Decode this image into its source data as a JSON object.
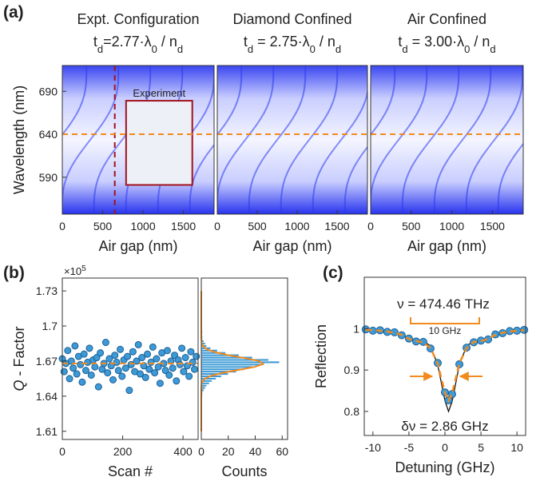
{
  "chart_data": [
    {
      "type": "heatmap",
      "panel_label": "(a)",
      "title": "Expt. Configuration",
      "subtitle_parts": [
        "t",
        "d",
        "=2.77·λ",
        "0",
        " / n",
        "d"
      ],
      "xlabel": "Air gap (nm)",
      "ylabel": "Wavelength (nm)",
      "xlim": [
        0,
        1880
      ],
      "ylim": [
        547,
        720
      ],
      "xticks": [
        0,
        500,
        1000,
        1500
      ],
      "yticks": [
        590,
        640,
        690
      ],
      "color": "#2a38ee",
      "hline": 640,
      "hline_color": "#f28a1c",
      "vline": 650,
      "vline_color": "#a0141e",
      "inset_label": "Experiment",
      "inset_x": [
        790,
        1610
      ],
      "inset_y": [
        581,
        679
      ]
    },
    {
      "type": "heatmap",
      "title": "Diamond Confined",
      "subtitle_parts": [
        "t",
        "d",
        " = 2.75·λ",
        "0",
        " / n",
        "d"
      ],
      "xlabel": "Air gap (nm)",
      "xlim": [
        0,
        1880
      ],
      "ylim": [
        547,
        720
      ],
      "xticks": [
        0,
        500,
        1000,
        1500
      ],
      "color": "#2a38ee",
      "hline": 640,
      "hline_color": "#f28a1c"
    },
    {
      "type": "heatmap",
      "title": "Air Confined",
      "subtitle_parts": [
        "t",
        "d",
        " = 3.00·λ",
        "0",
        " / n",
        "d"
      ],
      "xlabel": "Air gap (nm)",
      "xlim": [
        0,
        1880
      ],
      "ylim": [
        547,
        720
      ],
      "xticks": [
        0,
        500,
        1000,
        1500
      ],
      "color": "#2a38ee",
      "hline": 640,
      "hline_color": "#f28a1c"
    },
    {
      "type": "scatter",
      "panel_label": "(b)",
      "xlabel": "Scan #",
      "ylabel_parts": [
        "Q",
        " - Factor"
      ],
      "multiplier_parts": [
        "×10",
        "5"
      ],
      "x": [
        0,
        6,
        12,
        18,
        24,
        30,
        36,
        42,
        48,
        54,
        60,
        66,
        72,
        78,
        84,
        90,
        96,
        102,
        108,
        114,
        120,
        126,
        132,
        138,
        144,
        150,
        156,
        162,
        168,
        174,
        180,
        186,
        192,
        198,
        204,
        210,
        216,
        222,
        228,
        234,
        240,
        246,
        252,
        258,
        264,
        270,
        276,
        282,
        288,
        294,
        300,
        306,
        312,
        318,
        324,
        330,
        336,
        342,
        348,
        354,
        360,
        366,
        372,
        378,
        384,
        390,
        396,
        402,
        408,
        414,
        420,
        426,
        432,
        438,
        444
      ],
      "values": [
        1.672,
        1.661,
        1.668,
        1.679,
        1.655,
        1.67,
        1.664,
        1.683,
        1.659,
        1.674,
        1.667,
        1.652,
        1.676,
        1.662,
        1.669,
        1.681,
        1.658,
        1.671,
        1.665,
        1.673,
        1.648,
        1.677,
        1.663,
        1.668,
        1.686,
        1.66,
        1.672,
        1.666,
        1.654,
        1.675,
        1.669,
        1.662,
        1.68,
        1.657,
        1.671,
        1.664,
        1.674,
        1.645,
        1.667,
        1.678,
        1.661,
        1.67,
        1.684,
        1.659,
        1.673,
        1.666,
        1.656,
        1.676,
        1.663,
        1.669,
        1.682,
        1.66,
        1.672,
        1.665,
        1.651,
        1.677,
        1.668,
        1.662,
        1.679,
        1.658,
        1.67,
        1.664,
        1.675,
        1.653,
        1.671,
        1.667,
        1.681,
        1.661,
        1.673,
        1.666,
        1.657,
        1.678,
        1.669,
        1.663,
        1.674
      ],
      "color": "#3d9ad6",
      "xlim": [
        0,
        450
      ],
      "ylim": [
        1.603,
        1.741
      ],
      "xticks": [
        0,
        200,
        400
      ],
      "yticks": [
        1.61,
        1.64,
        1.67,
        1.7,
        1.73
      ],
      "hline": 1.668,
      "hline_color": "#f28a1c"
    },
    {
      "type": "histogram",
      "xlabel": "Counts",
      "bins": [
        1.64,
        1.642,
        1.644,
        1.646,
        1.648,
        1.65,
        1.652,
        1.654,
        1.656,
        1.658,
        1.66,
        1.662,
        1.664,
        1.666,
        1.668,
        1.67,
        1.672,
        1.674,
        1.676,
        1.678,
        1.68,
        1.682,
        1.684,
        1.686,
        1.688,
        1.69,
        1.692,
        1.694,
        1.696,
        1.698,
        1.7
      ],
      "counts": [
        1,
        1,
        2,
        3,
        4,
        6,
        8,
        11,
        15,
        20,
        26,
        32,
        38,
        45,
        58,
        50,
        38,
        28,
        18,
        12,
        7,
        4,
        3,
        2,
        1,
        1,
        0,
        1,
        0,
        0
      ],
      "color": "#3d9ad6",
      "xlim": [
        0,
        64
      ],
      "ylim": [
        1.603,
        1.741
      ],
      "xticks": [
        0,
        20,
        40,
        60
      ],
      "fit": {
        "color": "#f28a1c",
        "y": [
          1.61,
          1.64,
          1.645,
          1.65,
          1.6525,
          1.655,
          1.6575,
          1.66,
          1.6625,
          1.665,
          1.6675,
          1.67,
          1.6725,
          1.675,
          1.6775,
          1.68,
          1.6825,
          1.685,
          1.69,
          1.695,
          1.7,
          1.73
        ],
        "counts": [
          0,
          0,
          0,
          0.2,
          0.9,
          2.8,
          7.4,
          15.9,
          27.9,
          39.6,
          45.8,
          43.1,
          32.9,
          20.4,
          10.4,
          4.3,
          1.4,
          0.4,
          0,
          0,
          0,
          0
        ]
      }
    },
    {
      "type": "line",
      "panel_label": "(c)",
      "xlabel": "Detuning (GHz)",
      "ylabel": "Reflection",
      "x": [
        -11,
        -10,
        -9,
        -8,
        -7,
        -6,
        -5,
        -4,
        -3,
        -2,
        -1,
        0,
        0.5,
        1,
        2,
        3,
        4,
        5,
        6,
        7,
        8,
        9,
        10,
        11
      ],
      "series": [
        {
          "color": "#111111",
          "style": "solid",
          "values": [
            0.997,
            0.996,
            0.995,
            0.993,
            0.99,
            0.985,
            0.976,
            0.972,
            0.97,
            0.958,
            0.912,
            0.826,
            0.8,
            0.824,
            0.912,
            0.958,
            0.97,
            0.972,
            0.976,
            0.986,
            0.99,
            0.993,
            0.995,
            0.996
          ]
        },
        {
          "color": "#3d9ad6",
          "style": "markers",
          "values": [
            0.998,
            0.995,
            0.996,
            0.992,
            0.991,
            0.984,
            0.976,
            0.969,
            0.968,
            0.952,
            0.917,
            0.846,
            0.827,
            0.842,
            0.914,
            0.954,
            0.967,
            0.971,
            0.974,
            0.986,
            0.989,
            0.994,
            0.995,
            0.997
          ]
        },
        {
          "color": "#f28a1c",
          "style": "dashed",
          "values": [
            0.997,
            0.996,
            0.995,
            0.993,
            0.99,
            0.985,
            0.975,
            0.97,
            0.967,
            0.953,
            0.915,
            0.845,
            0.826,
            0.843,
            0.916,
            0.953,
            0.968,
            0.97,
            0.975,
            0.985,
            0.99,
            0.993,
            0.995,
            0.996
          ]
        }
      ],
      "xlim": [
        -11.2,
        11.2
      ],
      "ylim": [
        0.742,
        1.124
      ],
      "xticks": [
        -10,
        -5,
        0,
        5,
        10
      ],
      "yticks": [
        0.8,
        0.9,
        1
      ],
      "annotations": [
        "ν = 474.46 THz",
        "10 GHz",
        "δν = 2.86 GHz"
      ]
    }
  ]
}
